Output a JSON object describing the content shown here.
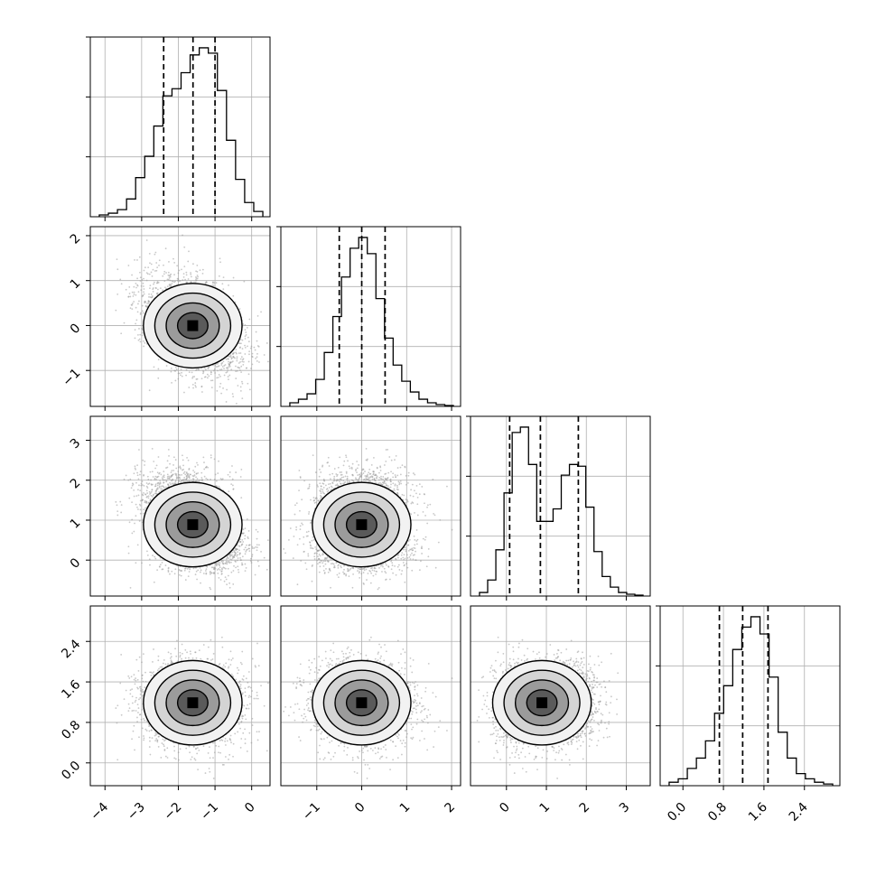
{
  "chart_data": {
    "type": "corner",
    "n_params": 4,
    "params": [
      {
        "range": [
          -4.4,
          0.5
        ],
        "ticks": [
          -4,
          -3,
          -2,
          -1,
          0
        ],
        "tick_labels": [
          "−4",
          "−3",
          "−2",
          "−1",
          "0"
        ],
        "quantiles": [
          -2.4,
          -1.6,
          -1.0
        ],
        "hist": [
          0.01,
          0.02,
          0.04,
          0.1,
          0.22,
          0.34,
          0.51,
          0.68,
          0.72,
          0.81,
          0.91,
          0.95,
          0.92,
          0.71,
          0.43,
          0.21,
          0.08,
          0.03
        ]
      },
      {
        "range": [
          -1.8,
          2.2
        ],
        "ticks": [
          -1,
          0,
          1,
          2
        ],
        "tick_labels": [
          "−1",
          "0",
          "1",
          "2"
        ],
        "quantiles": [
          -0.5,
          0.0,
          0.52
        ],
        "hist": [
          0.02,
          0.04,
          0.07,
          0.15,
          0.3,
          0.5,
          0.72,
          0.88,
          0.94,
          0.85,
          0.6,
          0.38,
          0.23,
          0.14,
          0.08,
          0.04,
          0.02,
          0.01,
          0.005
        ]
      },
      {
        "range": [
          -0.9,
          3.6
        ],
        "ticks": [
          0,
          1,
          2,
          3
        ],
        "tick_labels": [
          "0",
          "1",
          "2",
          "3"
        ],
        "quantiles": [
          0.08,
          0.85,
          1.8
        ],
        "hist": [
          0.02,
          0.09,
          0.26,
          0.58,
          0.92,
          0.95,
          0.74,
          0.42,
          0.42,
          0.49,
          0.68,
          0.74,
          0.73,
          0.5,
          0.25,
          0.11,
          0.05,
          0.02,
          0.01,
          0.005
        ]
      },
      {
        "range": [
          -0.45,
          3.1
        ],
        "ticks": [
          0.0,
          0.8,
          1.6,
          2.4
        ],
        "tick_labels": [
          "0.0",
          "0.8",
          "1.6",
          "2.4"
        ],
        "quantiles": [
          0.72,
          1.18,
          1.68
        ],
        "hist": [
          0.02,
          0.04,
          0.1,
          0.16,
          0.26,
          0.42,
          0.58,
          0.79,
          0.92,
          0.98,
          0.88,
          0.63,
          0.31,
          0.16,
          0.07,
          0.04,
          0.02,
          0.01
        ]
      }
    ],
    "grid": true,
    "colors": {
      "points": "#b5b5b5",
      "density": "#000000",
      "lines": "#000000"
    }
  }
}
